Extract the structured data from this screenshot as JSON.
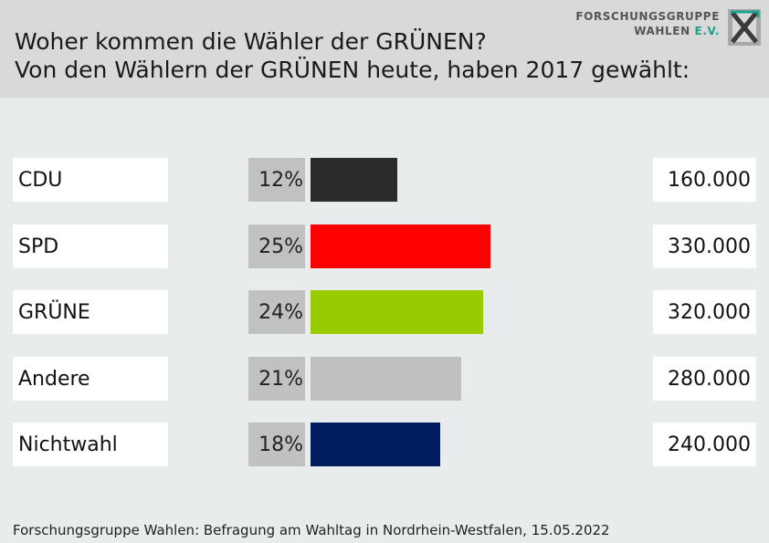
{
  "header": {
    "title_line1": "Woher kommen die Wähler der GRÜNEN?",
    "title_line2": "Von den Wählern der GRÜNEN heute, haben 2017 gewählt:",
    "logo_line1": "FORSCHUNGSGRUPPE",
    "logo_line2_a": "WAHLEN ",
    "logo_line2_b": "E.V."
  },
  "chart_data": {
    "type": "bar",
    "orientation": "horizontal",
    "categories": [
      "CDU",
      "SPD",
      "GRÜNE",
      "Andere",
      "Nichtwahl"
    ],
    "values": [
      12,
      25,
      24,
      21,
      18
    ],
    "value_labels": [
      "12%",
      "25%",
      "24%",
      "21%",
      "18%"
    ],
    "absolute_labels": [
      "160.000",
      "330.000",
      "320.000",
      "280.000",
      "240.000"
    ],
    "absolute_values": [
      160000,
      330000,
      320000,
      280000,
      240000
    ],
    "colors": [
      "#2b2b2b",
      "#ff0000",
      "#99cc00",
      "#c0c0c0",
      "#001e5f"
    ],
    "title": "Woher kommen die Wähler der GRÜNEN?",
    "xlabel": "",
    "ylabel": ""
  },
  "footer": {
    "source": "Forschungsgruppe Wahlen: Befragung am Wahltag in Nordrhein-Westfalen, 15.05.2022"
  }
}
